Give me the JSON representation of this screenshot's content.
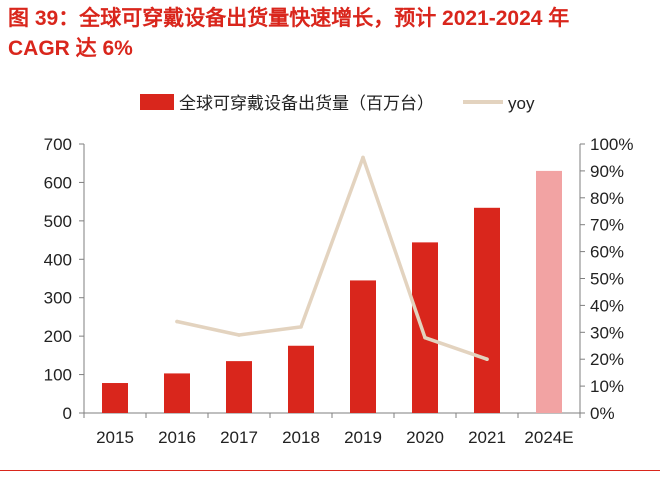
{
  "figure": {
    "title_line1": "图 39：全球可穿戴设备出货量快速增长，预计 2021-2024 年",
    "title_line2": "CAGR 达 6%"
  },
  "chart_data": {
    "type": "bar",
    "categories": [
      "2015",
      "2016",
      "2017",
      "2018",
      "2019",
      "2020",
      "2021",
      "2024E"
    ],
    "series": [
      {
        "name": "全球可穿戴设备出货量（百万台）",
        "type": "bar",
        "axis": "left",
        "values": [
          78,
          103,
          135,
          175,
          345,
          444,
          534,
          630
        ],
        "color": "#d9261c",
        "forecast_color": "#f2a3a3"
      },
      {
        "name": "yoy",
        "type": "line",
        "axis": "right",
        "values": [
          null,
          0.34,
          0.29,
          0.32,
          0.95,
          0.28,
          0.2,
          null
        ],
        "color": "#e3d3bf"
      }
    ],
    "y_left": {
      "ylim": [
        0,
        700
      ],
      "ticks": [
        "0",
        "100",
        "200",
        "300",
        "400",
        "500",
        "600",
        "700"
      ]
    },
    "y_right": {
      "ylim": [
        0,
        1
      ],
      "ticks": [
        "0%",
        "10%",
        "20%",
        "30%",
        "40%",
        "50%",
        "60%",
        "70%",
        "80%",
        "90%",
        "100%"
      ]
    },
    "legend_position": "top-center",
    "grid": false
  }
}
